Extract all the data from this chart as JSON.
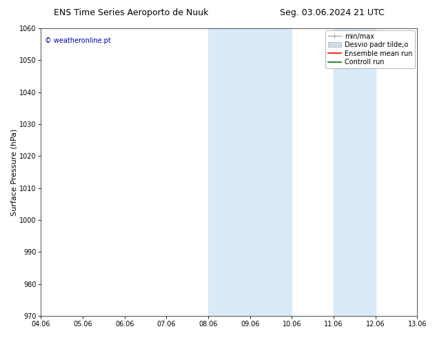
{
  "title_left": "ENS Time Series Aeroporto de Nuuk",
  "title_right": "Seg. 03.06.2024 21 UTC",
  "ylabel": "Surface Pressure (hPa)",
  "ylim": [
    970,
    1060
  ],
  "yticks": [
    970,
    980,
    990,
    1000,
    1010,
    1020,
    1030,
    1040,
    1050,
    1060
  ],
  "xtick_labels": [
    "04.06",
    "05.06",
    "06.06",
    "07.06",
    "08.06",
    "09.06",
    "10.06",
    "11.06",
    "12.06",
    "13.06"
  ],
  "xtick_positions": [
    0,
    1,
    2,
    3,
    4,
    5,
    6,
    7,
    8,
    9
  ],
  "watermark": "© weatheronline.pt",
  "watermark_color": "#0000bb",
  "background_color": "#ffffff",
  "plot_bg_color": "#ffffff",
  "shaded_regions": [
    {
      "xstart": 4,
      "xend": 6,
      "color": "#daeaf8"
    },
    {
      "xstart": 7,
      "xend": 8,
      "color": "#daeaf8"
    }
  ],
  "legend_labels": [
    "min/max",
    "Desvio padr tilde;o",
    "Ensemble mean run",
    "Controll run"
  ],
  "legend_colors": [
    "#aaaaaa",
    "#ccdded",
    "#ff0000",
    "#007700"
  ],
  "grid_color": "#dddddd",
  "title_fontsize": 9,
  "tick_fontsize": 7,
  "ylabel_fontsize": 8,
  "legend_fontsize": 7
}
